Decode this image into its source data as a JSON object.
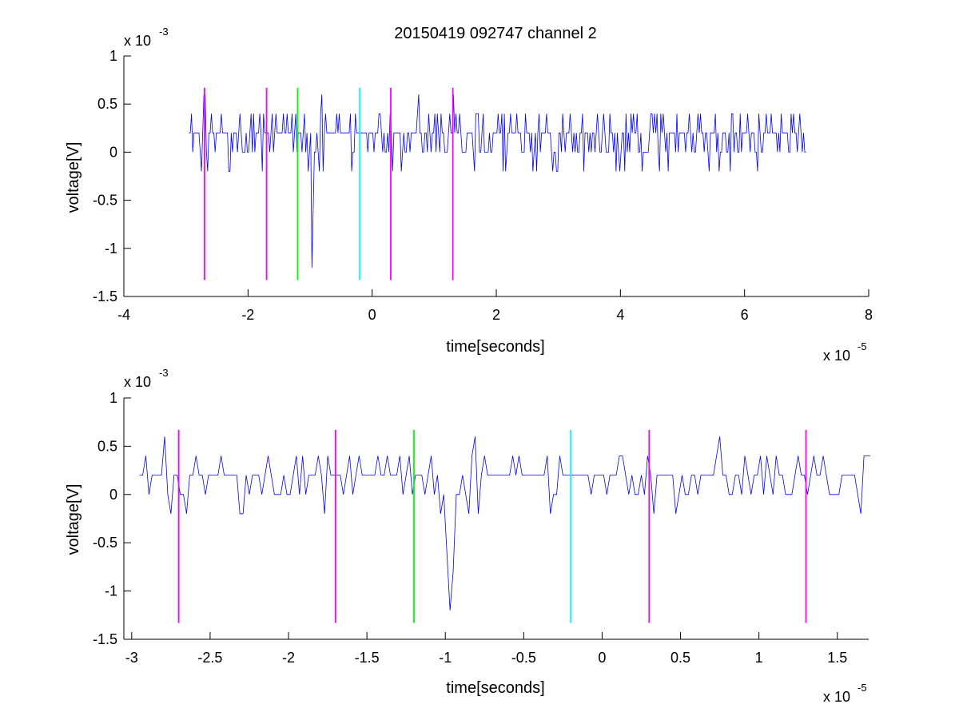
{
  "chart_data": [
    {
      "type": "line",
      "title": "20150419 092747 channel 2",
      "xlabel": "time[seconds]",
      "ylabel": "voltage[V]",
      "xlim": [
        -4,
        8
      ],
      "ylim": [
        -1.5,
        1
      ],
      "x_multiplier": {
        "base": "x 10",
        "exponent": "-5"
      },
      "y_multiplier": {
        "base": "x 10",
        "exponent": "-3"
      },
      "x_ticks": [
        -4,
        -2,
        0,
        2,
        4,
        6,
        8
      ],
      "x_tick_labels": [
        "-4",
        "-2",
        "0",
        "2",
        "4",
        "6",
        "8"
      ],
      "y_ticks": [
        1,
        0.5,
        0,
        -0.5,
        -1,
        -1.5
      ],
      "y_tick_labels": [
        "1",
        "0.5",
        "0",
        "-0.5",
        "-1",
        "-1.5"
      ],
      "grid": false,
      "series": [
        {
          "color": "#0000ff",
          "x_start": -2.95,
          "x_end": 7.0,
          "dx": 0.02,
          "seed": 101,
          "spikes": [
            [
              -0.98,
              -1.2
            ],
            [
              -0.96,
              -0.6
            ],
            [
              -0.82,
              0.6
            ],
            [
              0.75,
              0.6
            ],
            [
              -2.7,
              0.6
            ],
            [
              1.3,
              0.6
            ]
          ]
        }
      ],
      "markers": {
        "y_bottom": -1.33,
        "y_top": 0.67,
        "lines": [
          {
            "x": -2.7,
            "color": "#ff00ff"
          },
          {
            "x": -1.7,
            "color": "#ff00ff"
          },
          {
            "x": -1.2,
            "color": "#00ff00"
          },
          {
            "x": -0.2,
            "color": "#00ffff"
          },
          {
            "x": 0.3,
            "color": "#ff00ff"
          },
          {
            "x": 1.3,
            "color": "#ff00ff"
          }
        ]
      }
    },
    {
      "type": "line",
      "title": "",
      "xlabel": "time[seconds]",
      "ylabel": "voltage[V]",
      "xlim": [
        -3.05,
        1.7
      ],
      "ylim": [
        -1.5,
        1
      ],
      "x_multiplier": {
        "base": "x 10",
        "exponent": "-5"
      },
      "y_multiplier": {
        "base": "x 10",
        "exponent": "-3"
      },
      "x_ticks": [
        -3,
        -2.5,
        -2,
        -1.5,
        -1,
        -0.5,
        0,
        0.5,
        1,
        1.5
      ],
      "x_tick_labels": [
        "-3",
        "-2.5",
        "-2",
        "-1.5",
        "-1",
        "-0.5",
        "0",
        "0.5",
        "1",
        "1.5"
      ],
      "y_ticks": [
        1,
        0.5,
        0,
        -0.5,
        -1,
        -1.5
      ],
      "y_tick_labels": [
        "1",
        "0.5",
        "0",
        "-0.5",
        "-1",
        "-1.5"
      ],
      "grid": false,
      "series": [
        {
          "color": "#0000ff",
          "x_start": -2.95,
          "x_end": 1.7,
          "dx": 0.02,
          "seed": 101,
          "spikes": [
            [
              -1.0,
              -0.6
            ],
            [
              -0.98,
              -1.2
            ],
            [
              -0.96,
              -0.8
            ],
            [
              -0.82,
              0.6
            ],
            [
              -2.8,
              0.6
            ],
            [
              0.75,
              0.6
            ],
            [
              1.2,
              0.6
            ]
          ]
        }
      ],
      "markers": {
        "y_bottom": -1.33,
        "y_top": 0.67,
        "lines": [
          {
            "x": -2.7,
            "color": "#ff00ff"
          },
          {
            "x": -1.7,
            "color": "#ff00ff"
          },
          {
            "x": -1.2,
            "color": "#00ff00"
          },
          {
            "x": -0.2,
            "color": "#00ffff"
          },
          {
            "x": 0.3,
            "color": "#ff00ff"
          },
          {
            "x": 1.3,
            "color": "#ff00ff"
          }
        ]
      }
    }
  ]
}
